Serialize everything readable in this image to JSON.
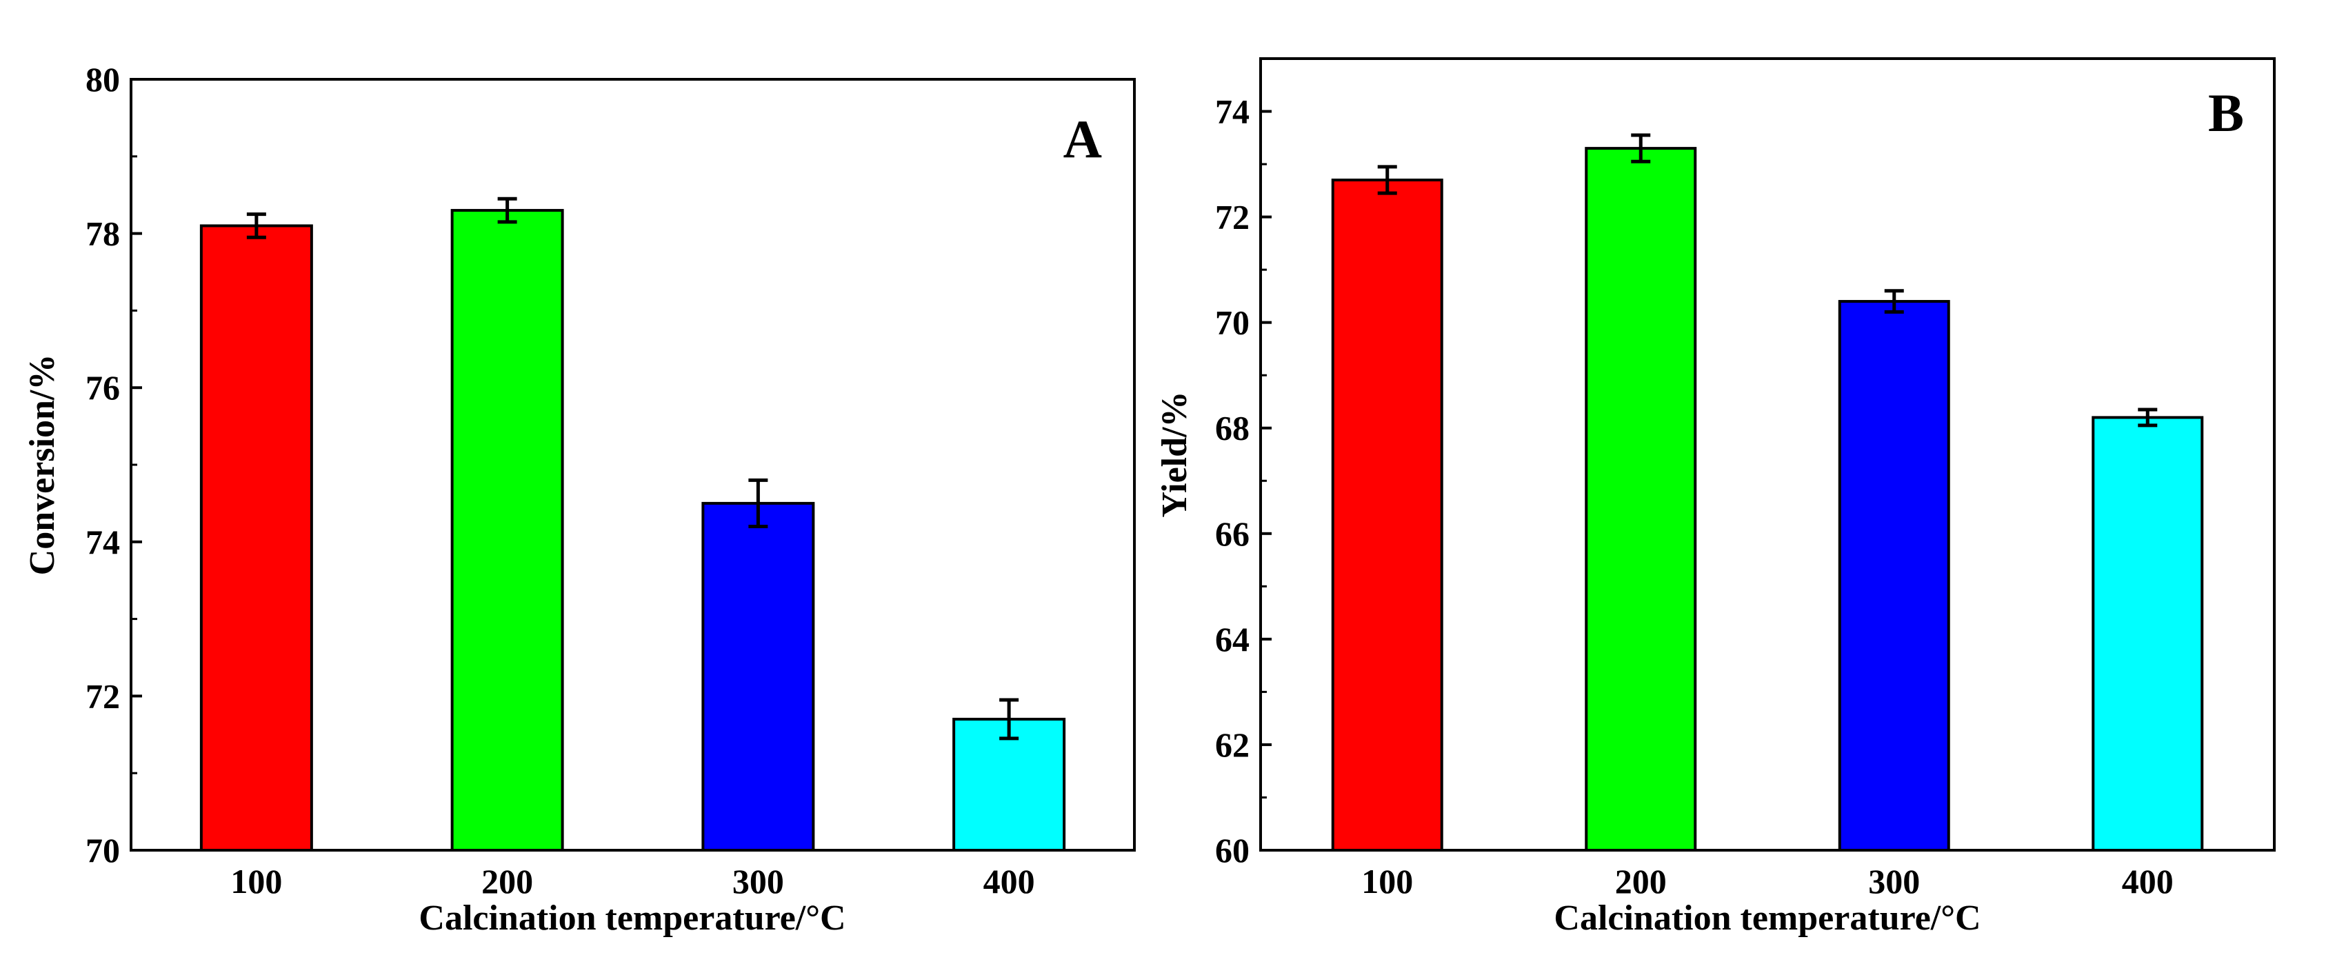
{
  "chart_data": [
    {
      "type": "bar",
      "panel_label": "A",
      "categories": [
        "100",
        "200",
        "300",
        "400"
      ],
      "values": [
        78.1,
        78.3,
        74.5,
        71.7
      ],
      "errors": [
        0.15,
        0.15,
        0.3,
        0.25
      ],
      "colors": [
        "#ff0000",
        "#00ff00",
        "#0000ff",
        "#00ffff"
      ],
      "xlabel": "Calcination temperature/°C",
      "ylabel": "Conversion/%",
      "ylim": [
        70,
        80
      ],
      "yticks": [
        70,
        72,
        74,
        76,
        78,
        80
      ],
      "ytick_labels": [
        "70",
        "72",
        "74",
        "76",
        "78",
        "80"
      ]
    },
    {
      "type": "bar",
      "panel_label": "B",
      "categories": [
        "100",
        "200",
        "300",
        "400"
      ],
      "values": [
        72.7,
        73.3,
        70.4,
        68.2
      ],
      "errors": [
        0.25,
        0.25,
        0.2,
        0.15
      ],
      "colors": [
        "#ff0000",
        "#00ff00",
        "#0000ff",
        "#00ffff"
      ],
      "xlabel": "Calcination temperature/°C",
      "ylabel": "Yield/%",
      "ylim": [
        60,
        75
      ],
      "yticks": [
        60,
        62,
        64,
        66,
        68,
        70,
        72,
        74
      ],
      "ytick_labels": [
        "60",
        "62",
        "64",
        "66",
        "68",
        "70",
        "72",
        "74"
      ]
    }
  ]
}
